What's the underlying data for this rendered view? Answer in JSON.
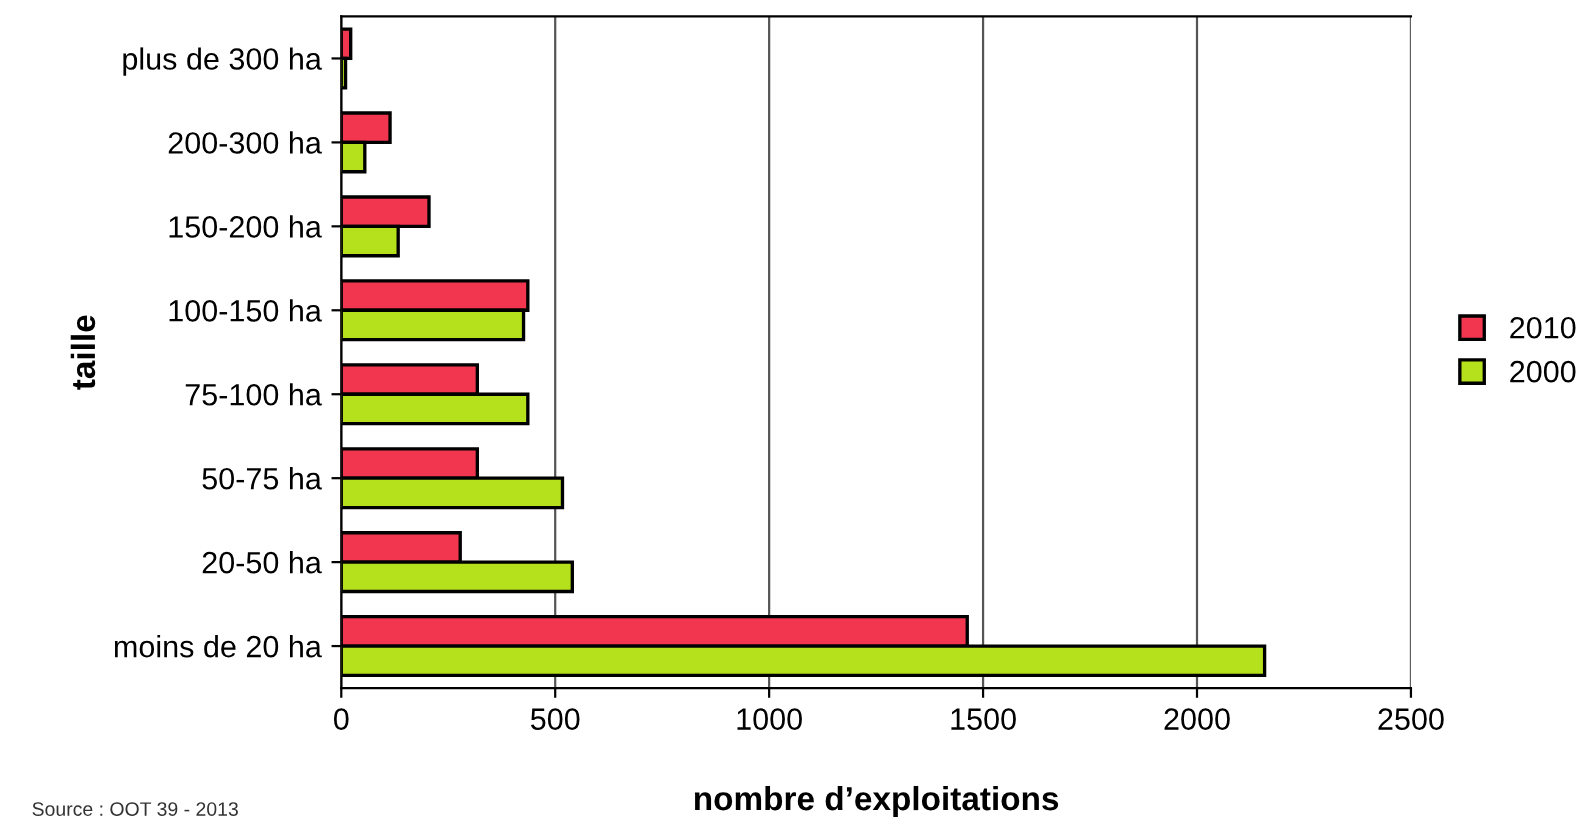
{
  "chart_data": {
    "type": "bar",
    "orientation": "horizontal",
    "xlabel": "nombre d’exploitations",
    "ylabel": "taille",
    "categories": [
      "plus de 300 ha",
      "200-300 ha",
      "150-200 ha",
      "100-150 ha",
      "75-100 ha",
      "50-75 ha",
      "20-50 ha",
      "moins de 20 ha"
    ],
    "series": [
      {
        "name": "2010",
        "color": "#f2364f",
        "values": [
          22,
          114,
          205,
          436,
          318,
          318,
          278,
          1463
        ]
      },
      {
        "name": "2000",
        "color": "#b5e11c",
        "values": [
          10,
          55,
          133,
          426,
          436,
          517,
          540,
          2158
        ]
      }
    ],
    "xlim": [
      0,
      2500
    ],
    "xticks": [
      0,
      500,
      1000,
      1500,
      2000,
      2500
    ],
    "grid": "x",
    "legend": "right",
    "annotations": [
      "Source : OOT 39 - 2013"
    ]
  }
}
